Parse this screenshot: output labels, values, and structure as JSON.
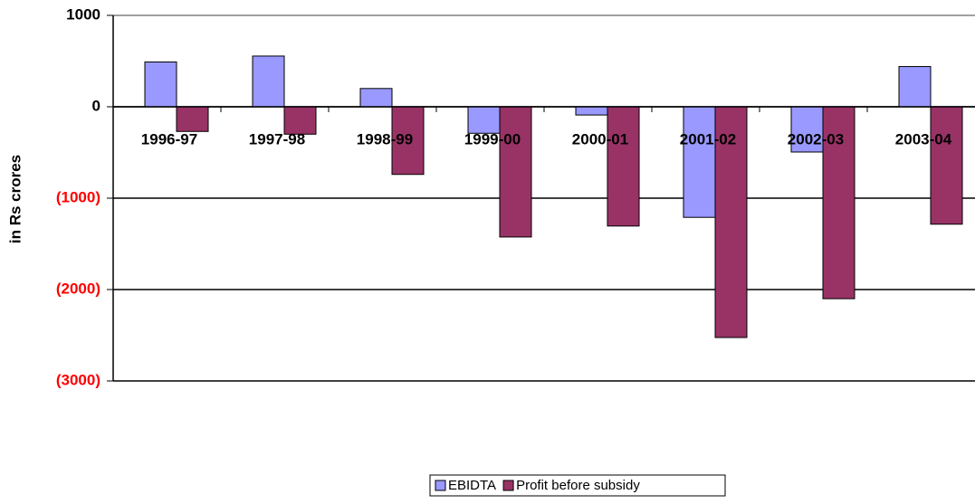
{
  "chart_data": {
    "type": "bar",
    "y_label": "in Rs crores",
    "categories": [
      "1996-97",
      "1997-98",
      "1998-99",
      "1999-00",
      "2000-01",
      "2001-02",
      "2002-03",
      "2003-04"
    ],
    "series": [
      {
        "name": "EBIDTA",
        "color": "#9999ff",
        "values": [
          490,
          555,
          200,
          -290,
          -90,
          -1210,
          -495,
          440
        ]
      },
      {
        "name": "Profit before subsidy",
        "color": "#993366",
        "values": [
          -270,
          -300,
          -740,
          -1425,
          -1305,
          -2525,
          -2100,
          -1285
        ]
      }
    ],
    "ylim": [
      -3000,
      1000
    ],
    "yticks": [
      {
        "value": -3000,
        "label": "(3000)"
      },
      {
        "value": -2000,
        "label": "(2000)"
      },
      {
        "value": -1000,
        "label": "(1000)"
      },
      0,
      1000
    ],
    "negative_tick_color": "#ff0000",
    "grid": true,
    "legend": "bottom"
  }
}
